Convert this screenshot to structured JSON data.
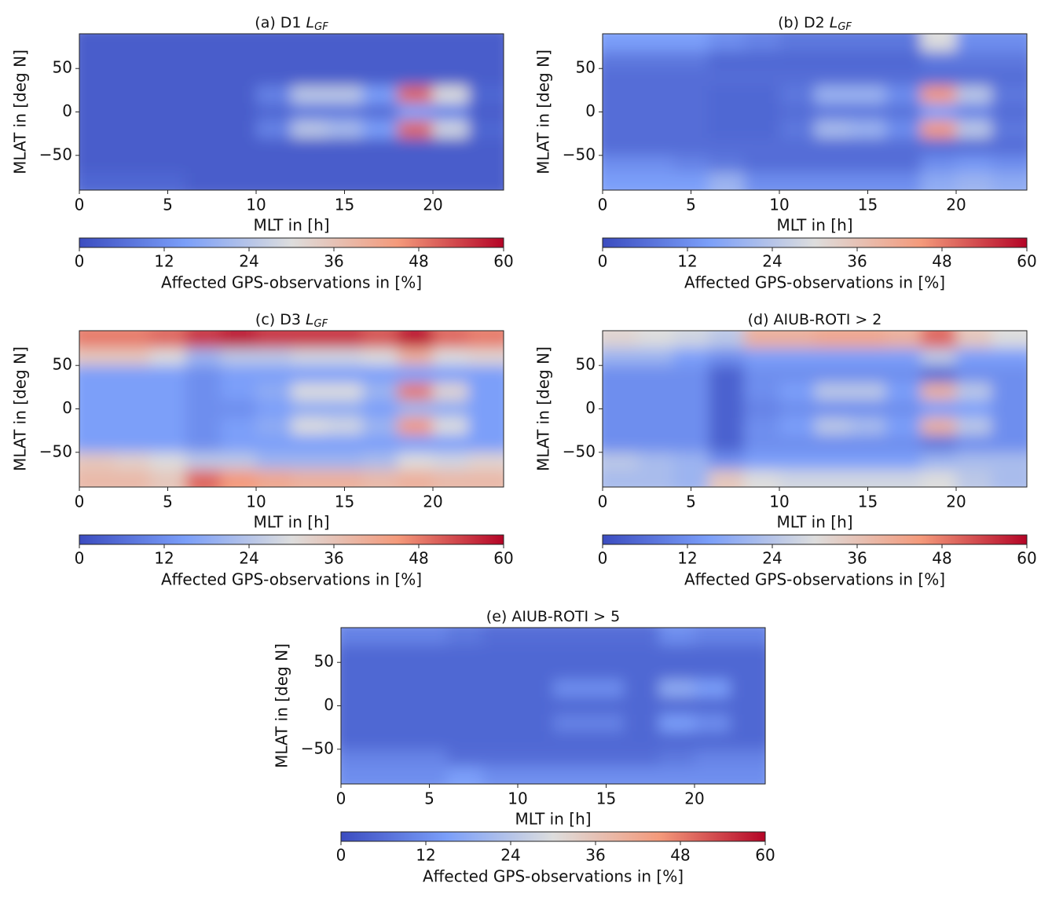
{
  "chart_data": [
    {
      "type": "heatmap",
      "title": "(a) D1",
      "title_symbol": "L",
      "title_subscript": "GF",
      "xlabel": "MLT in [h]",
      "ylabel": "MLAT in [deg N]",
      "xbins": [
        0,
        2,
        4,
        6,
        8,
        10,
        12,
        14,
        16,
        18,
        20,
        22,
        24
      ],
      "ybins": [
        90,
        70,
        50,
        30,
        10,
        -10,
        -30,
        -50,
        -70,
        -90
      ],
      "xlim": [
        0,
        24
      ],
      "ylim": [
        -90,
        90
      ],
      "xticks": [
        0,
        5,
        10,
        15,
        20
      ],
      "yticks": [
        {
          "value": -50,
          "label": "−50"
        },
        0,
        50
      ],
      "colormap": "coolwarm",
      "clim": [
        0,
        60
      ],
      "cticks": [
        0,
        12,
        24,
        36,
        48,
        60
      ],
      "clabel": "Affected GPS-observations in [%]",
      "z": [
        [
          3,
          3,
          3,
          3,
          3,
          3,
          3,
          3,
          3,
          3,
          3,
          3
        ],
        [
          3,
          3,
          3,
          3,
          3,
          3,
          3,
          3,
          3,
          3,
          3,
          3
        ],
        [
          3,
          3,
          3,
          3,
          3,
          3,
          3,
          3,
          3,
          3,
          3,
          3
        ],
        [
          3,
          3,
          3,
          3,
          3,
          10,
          25,
          25,
          15,
          50,
          30,
          5
        ],
        [
          3,
          3,
          3,
          3,
          3,
          5,
          8,
          8,
          6,
          15,
          10,
          3
        ],
        [
          3,
          3,
          3,
          3,
          3,
          10,
          25,
          22,
          15,
          50,
          28,
          5
        ],
        [
          3,
          3,
          3,
          3,
          3,
          3,
          3,
          3,
          3,
          3,
          3,
          3
        ],
        [
          3,
          3,
          3,
          3,
          3,
          3,
          3,
          3,
          3,
          3,
          3,
          3
        ],
        [
          5,
          5,
          5,
          3,
          3,
          3,
          3,
          3,
          3,
          3,
          3,
          3
        ]
      ]
    },
    {
      "type": "heatmap",
      "title": "(b) D2",
      "title_symbol": "L",
      "title_subscript": "GF",
      "xlabel": "MLT in [h]",
      "ylabel": "MLAT in [deg N]",
      "xbins": [
        0,
        2,
        4,
        6,
        8,
        10,
        12,
        14,
        16,
        18,
        20,
        22,
        24
      ],
      "ybins": [
        90,
        70,
        50,
        30,
        10,
        -10,
        -30,
        -50,
        -70,
        -90
      ],
      "xlim": [
        0,
        24
      ],
      "ylim": [
        -90,
        90
      ],
      "xticks": [
        0,
        5,
        10,
        15,
        20
      ],
      "yticks": [
        {
          "value": -50,
          "label": "−50"
        },
        0,
        50
      ],
      "colormap": "coolwarm",
      "clim": [
        0,
        60
      ],
      "cticks": [
        0,
        12,
        24,
        36,
        48,
        60
      ],
      "clabel": "Affected GPS-observations in [%]",
      "z": [
        [
          15,
          15,
          15,
          12,
          10,
          8,
          8,
          8,
          8,
          30,
          12,
          12
        ],
        [
          8,
          8,
          8,
          5,
          5,
          5,
          5,
          5,
          5,
          8,
          8,
          8
        ],
        [
          6,
          6,
          6,
          6,
          6,
          6,
          6,
          6,
          6,
          6,
          6,
          6
        ],
        [
          6,
          6,
          6,
          5,
          5,
          8,
          20,
          20,
          12,
          45,
          25,
          8
        ],
        [
          6,
          6,
          6,
          5,
          5,
          6,
          8,
          8,
          7,
          15,
          10,
          6
        ],
        [
          6,
          6,
          6,
          5,
          5,
          8,
          22,
          20,
          12,
          45,
          25,
          8
        ],
        [
          6,
          6,
          6,
          6,
          6,
          6,
          6,
          6,
          6,
          6,
          6,
          6
        ],
        [
          12,
          12,
          10,
          8,
          6,
          6,
          6,
          6,
          6,
          12,
          14,
          12
        ],
        [
          15,
          15,
          15,
          20,
          12,
          12,
          12,
          12,
          12,
          18,
          20,
          18
        ]
      ]
    },
    {
      "type": "heatmap",
      "title": "(c) D3",
      "title_symbol": "L",
      "title_subscript": "GF",
      "xlabel": "MLT in [h]",
      "ylabel": "MLAT in [deg N]",
      "xbins": [
        0,
        2,
        4,
        6,
        8,
        10,
        12,
        14,
        16,
        18,
        20,
        22,
        24
      ],
      "ybins": [
        90,
        70,
        50,
        30,
        10,
        -10,
        -30,
        -50,
        -70,
        -90
      ],
      "xlim": [
        0,
        24
      ],
      "ylim": [
        -90,
        90
      ],
      "xticks": [
        0,
        5,
        10,
        15,
        20
      ],
      "yticks": [
        {
          "value": -50,
          "label": "−50"
        },
        0,
        50
      ],
      "colormap": "coolwarm",
      "clim": [
        0,
        60
      ],
      "cticks": [
        0,
        12,
        24,
        36,
        48,
        60
      ],
      "clabel": "Affected GPS-observations in [%]",
      "z": [
        [
          48,
          48,
          50,
          55,
          58,
          55,
          55,
          55,
          52,
          58,
          50,
          48
        ],
        [
          35,
          35,
          30,
          20,
          25,
          25,
          28,
          28,
          30,
          40,
          30,
          32
        ],
        [
          15,
          15,
          15,
          12,
          15,
          15,
          15,
          15,
          15,
          15,
          15,
          15
        ],
        [
          15,
          15,
          15,
          12,
          15,
          18,
          30,
          30,
          20,
          48,
          32,
          15
        ],
        [
          15,
          15,
          15,
          12,
          12,
          15,
          18,
          18,
          15,
          20,
          18,
          15
        ],
        [
          15,
          15,
          15,
          12,
          15,
          18,
          30,
          28,
          20,
          45,
          30,
          15
        ],
        [
          15,
          15,
          15,
          12,
          15,
          15,
          15,
          15,
          15,
          15,
          15,
          15
        ],
        [
          35,
          33,
          30,
          25,
          25,
          20,
          20,
          20,
          22,
          30,
          28,
          32
        ],
        [
          38,
          38,
          35,
          50,
          45,
          42,
          40,
          40,
          38,
          40,
          38,
          38
        ]
      ]
    },
    {
      "type": "heatmap",
      "title": "(d) AIUB-ROTI > 2",
      "xlabel": "MLT in [h]",
      "ylabel": "MLAT in [deg N]",
      "xbins": [
        0,
        2,
        4,
        6,
        8,
        10,
        12,
        14,
        16,
        18,
        20,
        22,
        24
      ],
      "ybins": [
        90,
        70,
        50,
        30,
        10,
        -10,
        -30,
        -50,
        -70,
        -90
      ],
      "xlim": [
        0,
        24
      ],
      "ylim": [
        -90,
        90
      ],
      "xticks": [
        0,
        5,
        10,
        15,
        20
      ],
      "yticks": [
        {
          "value": -50,
          "label": "−50"
        },
        0,
        50
      ],
      "colormap": "coolwarm",
      "clim": [
        0,
        60
      ],
      "cticks": [
        0,
        12,
        24,
        36,
        48,
        60
      ],
      "clabel": "Affected GPS-observations in [%]",
      "z": [
        [
          32,
          30,
          28,
          25,
          40,
          40,
          42,
          42,
          40,
          50,
          35,
          30
        ],
        [
          20,
          20,
          15,
          12,
          15,
          15,
          15,
          15,
          15,
          25,
          15,
          15
        ],
        [
          12,
          12,
          12,
          4,
          12,
          12,
          12,
          12,
          12,
          6,
          12,
          12
        ],
        [
          12,
          12,
          12,
          4,
          12,
          15,
          25,
          25,
          15,
          40,
          25,
          12
        ],
        [
          12,
          12,
          12,
          4,
          10,
          12,
          12,
          12,
          12,
          15,
          15,
          12
        ],
        [
          12,
          12,
          12,
          4,
          12,
          15,
          25,
          22,
          15,
          40,
          25,
          12
        ],
        [
          12,
          12,
          12,
          4,
          12,
          12,
          12,
          12,
          12,
          8,
          12,
          12
        ],
        [
          25,
          22,
          20,
          12,
          15,
          15,
          15,
          15,
          15,
          20,
          22,
          22
        ],
        [
          22,
          22,
          20,
          35,
          30,
          28,
          28,
          28,
          28,
          30,
          25,
          22
        ]
      ]
    },
    {
      "type": "heatmap",
      "title": "(e) AIUB-ROTI > 5",
      "xlabel": "MLT in [h]",
      "ylabel": "MLAT in [deg N]",
      "xbins": [
        0,
        2,
        4,
        6,
        8,
        10,
        12,
        14,
        16,
        18,
        20,
        22,
        24
      ],
      "ybins": [
        90,
        70,
        50,
        30,
        10,
        -10,
        -30,
        -50,
        -70,
        -90
      ],
      "xlim": [
        0,
        24
      ],
      "ylim": [
        -90,
        90
      ],
      "xticks": [
        0,
        5,
        10,
        15,
        20
      ],
      "yticks": [
        {
          "value": -50,
          "label": "−50"
        },
        0,
        50
      ],
      "colormap": "coolwarm",
      "clim": [
        0,
        60
      ],
      "cticks": [
        0,
        12,
        24,
        36,
        48,
        60
      ],
      "clabel": "Affected GPS-observations in [%]",
      "z": [
        [
          10,
          10,
          10,
          8,
          6,
          6,
          6,
          6,
          6,
          12,
          10,
          10
        ],
        [
          5,
          5,
          5,
          5,
          5,
          5,
          5,
          5,
          5,
          5,
          5,
          5
        ],
        [
          5,
          5,
          5,
          5,
          5,
          5,
          5,
          5,
          5,
          5,
          5,
          5
        ],
        [
          5,
          5,
          5,
          5,
          5,
          5,
          12,
          12,
          5,
          18,
          15,
          5
        ],
        [
          5,
          5,
          5,
          5,
          5,
          5,
          5,
          5,
          5,
          5,
          5,
          5
        ],
        [
          5,
          5,
          5,
          5,
          5,
          5,
          10,
          10,
          5,
          15,
          12,
          5
        ],
        [
          5,
          5,
          5,
          5,
          5,
          5,
          5,
          5,
          5,
          5,
          5,
          5
        ],
        [
          10,
          10,
          10,
          6,
          6,
          6,
          6,
          6,
          6,
          8,
          10,
          10
        ],
        [
          12,
          12,
          12,
          15,
          12,
          12,
          12,
          12,
          12,
          12,
          12,
          12
        ]
      ]
    }
  ]
}
